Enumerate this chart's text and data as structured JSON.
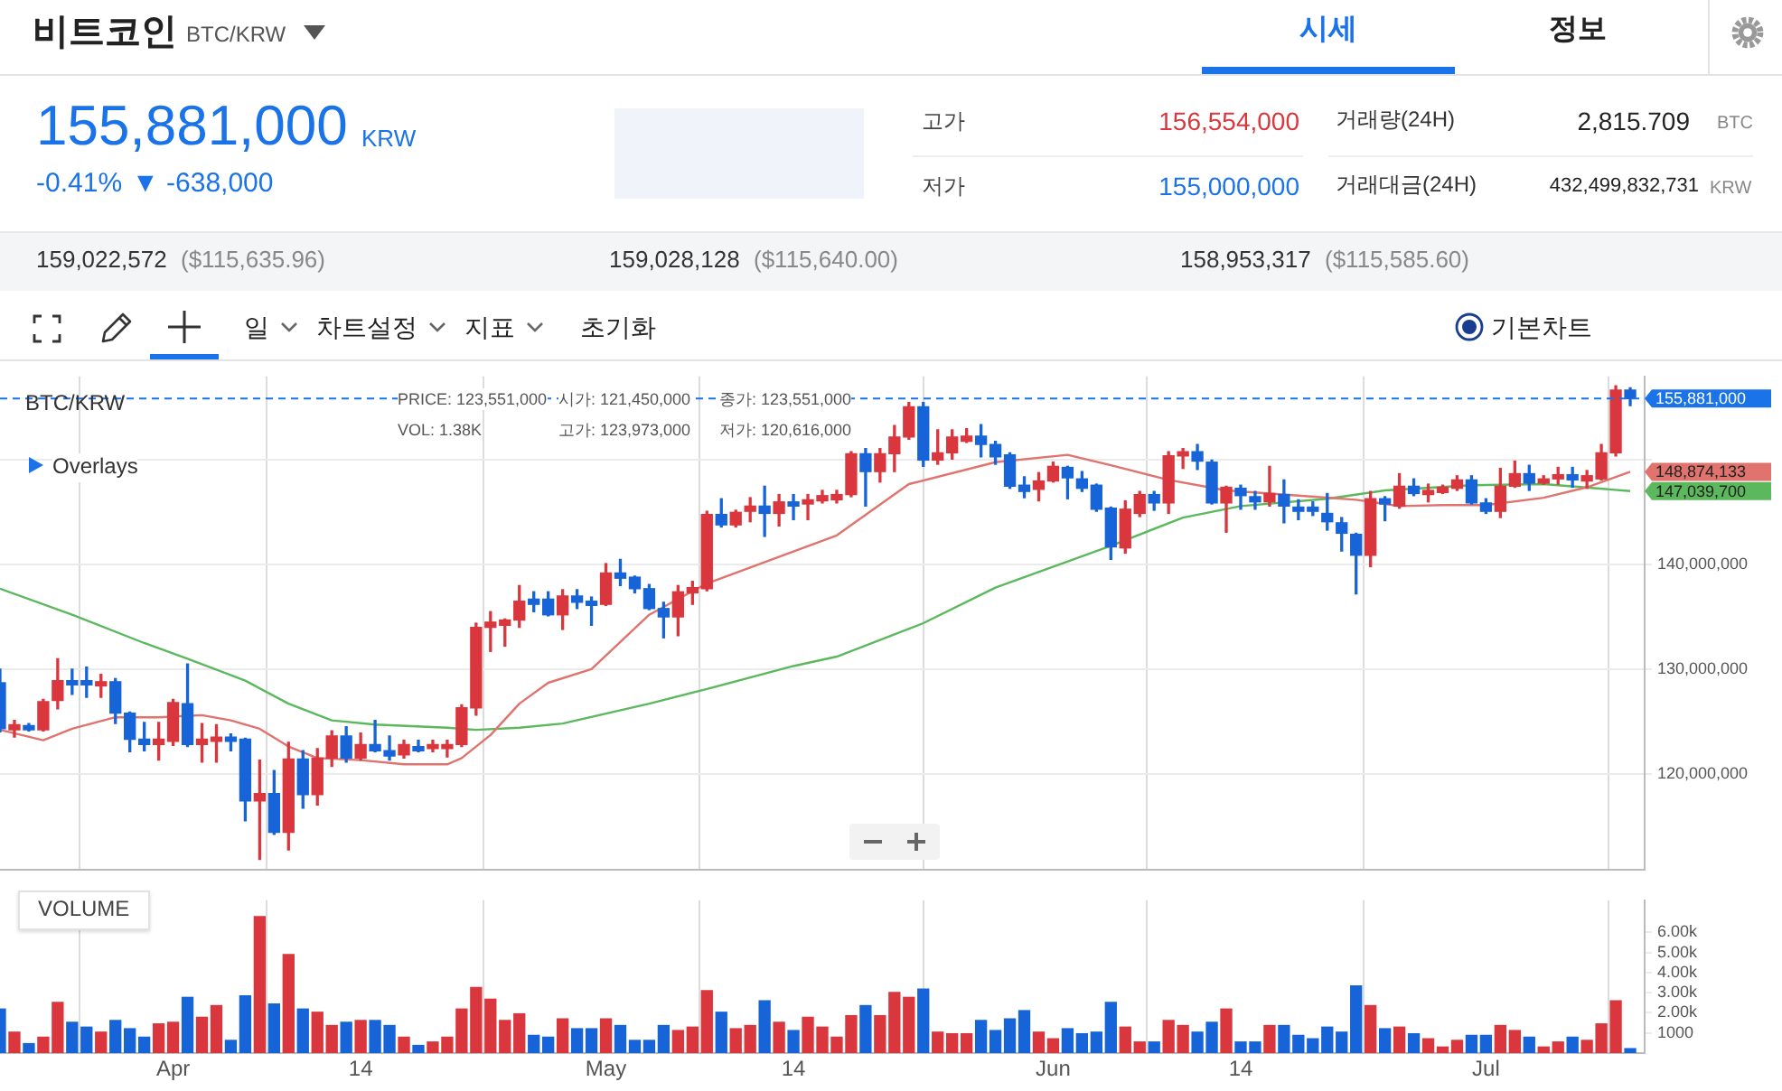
{
  "chart_data": [
    {
      "type": "other",
      "title": "비트코인",
      "subtitle": "BTC/KRW",
      "annotations": [
        "시세",
        "정보",
        "155,881,000",
        "KRW",
        "-0.41%",
        "▼ -638,000",
        "고가",
        "156,554,000",
        "저가",
        "155,000,000",
        "거래량(24H)",
        "2,815.709",
        "BTC",
        "거래대금(24H)",
        "432,499,832,731",
        "KRW",
        "159,022,572",
        "($115,635.96)",
        "159,028,128",
        "($115,640.00)",
        "158,953,317",
        "($115,585.60)",
        "일",
        "차트설정",
        "지표",
        "초기화",
        "기본차트"
      ]
    },
    {
      "type": "candlestick",
      "title": "BTC/KRW",
      "annotations": [
        "Overlays",
        "PRICE: 123,551,000",
        "VOL: 1.38K",
        "시가: 121,450,000",
        "고가: 123,973,000",
        "종가: 123,551,000",
        "저가: 120,616,000"
      ],
      "x": [
        "--03-20",
        "--03-21",
        "--03-22",
        "--03-23",
        "--03-24",
        "--03-25",
        "--03-26",
        "--03-27",
        "--03-28",
        "--03-29",
        "--03-30",
        "--03-31",
        "--04-01",
        "--04-02",
        "--04-03",
        "--04-04",
        "--04-05",
        "--04-06",
        "--04-07",
        "--04-08",
        "--04-09",
        "--04-10",
        "--04-11",
        "--04-12",
        "--04-13",
        "--04-14",
        "--04-15",
        "--04-16",
        "--04-17",
        "--04-18",
        "--04-19",
        "--04-20",
        "--04-21",
        "--04-22",
        "--04-23",
        "--04-24",
        "--04-25",
        "--04-26",
        "--04-27",
        "--04-28",
        "--04-29",
        "--04-30",
        "--05-01",
        "--05-02",
        "--05-03",
        "--05-04",
        "--05-05",
        "--05-06",
        "--05-07",
        "--05-08",
        "--05-09",
        "--05-10",
        "--05-11",
        "--05-12",
        "--05-13",
        "--05-14",
        "--05-15",
        "--05-16",
        "--05-17",
        "--05-18",
        "--05-19",
        "--05-20",
        "--05-21",
        "--05-22",
        "--05-23",
        "--05-24",
        "--05-25",
        "--05-26",
        "--05-27",
        "--05-28",
        "--05-29",
        "--05-30",
        "--05-31",
        "--06-01",
        "--06-02",
        "--06-03",
        "--06-04",
        "--06-05",
        "--06-06",
        "--06-07",
        "--06-08",
        "--06-09",
        "--06-10",
        "--06-11",
        "--06-12",
        "--06-13",
        "--06-14",
        "--06-15",
        "--06-16",
        "--06-17",
        "--06-18",
        "--06-19",
        "--06-20",
        "--06-21",
        "--06-22",
        "--06-23",
        "--06-24",
        "--06-25",
        "--06-26",
        "--06-27",
        "--06-28",
        "--06-29",
        "--06-30",
        "--07-01",
        "--07-02",
        "--07-03",
        "--07-04",
        "--07-05",
        "--07-06",
        "--07-07",
        "--07-08",
        "--07-09",
        "--07-10",
        "--07-11"
      ],
      "ohlc": [
        [
          128700000,
          130000000,
          124000000,
          124300000
        ],
        [
          124200000,
          125100000,
          123500000,
          124700000
        ],
        [
          124600000,
          124800000,
          124100000,
          124200000
        ],
        [
          124200000,
          127100000,
          124100000,
          126900000
        ],
        [
          127000000,
          131000000,
          126200000,
          128900000
        ],
        [
          128900000,
          130000000,
          127600000,
          128500000
        ],
        [
          128900000,
          130200000,
          127300000,
          128500000
        ],
        [
          128400000,
          129500000,
          127300000,
          128800000
        ],
        [
          128800000,
          129100000,
          124800000,
          125800000
        ],
        [
          125800000,
          125900000,
          122100000,
          123300000
        ],
        [
          123300000,
          124900000,
          122200000,
          122800000
        ],
        [
          122800000,
          124900000,
          121300000,
          123300000
        ],
        [
          123100000,
          127100000,
          122700000,
          126800000
        ],
        [
          126700000,
          130500000,
          122600000,
          122800000
        ],
        [
          122800000,
          124800000,
          121100000,
          123300000
        ],
        [
          123100000,
          124700000,
          121100000,
          123500000
        ],
        [
          123500000,
          123800000,
          122200000,
          123100000
        ],
        [
          123300000,
          123400000,
          115500000,
          117400000
        ],
        [
          117400000,
          121300000,
          111800000,
          118100000
        ],
        [
          118100000,
          120300000,
          114200000,
          114400000
        ],
        [
          114400000,
          123000000,
          112700000,
          121400000
        ],
        [
          121400000,
          122200000,
          116700000,
          118000000
        ],
        [
          118000000,
          122400000,
          117000000,
          121500000
        ],
        [
          121500000,
          124100000,
          120700000,
          123600000
        ],
        [
          123600000,
          124500000,
          121100000,
          121500000
        ],
        [
          121500000,
          123900000,
          121300000,
          122800000
        ],
        [
          122800000,
          125100000,
          122100000,
          122200000
        ],
        [
          122200000,
          123600000,
          121300000,
          121700000
        ],
        [
          121800000,
          123200000,
          121500000,
          122800000
        ],
        [
          122600000,
          123200000,
          122100000,
          122200000
        ],
        [
          122400000,
          123200000,
          122100000,
          122800000
        ],
        [
          122400000,
          123200000,
          121600000,
          122800000
        ],
        [
          122800000,
          126600000,
          122600000,
          126300000
        ],
        [
          126300000,
          134400000,
          125600000,
          134000000
        ],
        [
          134000000,
          135500000,
          131700000,
          134500000
        ],
        [
          134200000,
          134800000,
          132200000,
          134700000
        ],
        [
          134700000,
          138000000,
          134000000,
          136500000
        ],
        [
          136700000,
          137400000,
          135500000,
          136200000
        ],
        [
          136700000,
          137400000,
          135100000,
          135200000
        ],
        [
          135200000,
          137600000,
          133800000,
          137000000
        ],
        [
          137000000,
          137600000,
          135800000,
          136400000
        ],
        [
          136500000,
          136900000,
          134200000,
          136100000
        ],
        [
          136200000,
          140100000,
          136100000,
          139200000
        ],
        [
          139200000,
          140500000,
          138000000,
          138700000
        ],
        [
          138800000,
          138900000,
          137300000,
          137700000
        ],
        [
          137700000,
          138100000,
          135700000,
          135800000
        ],
        [
          135800000,
          136400000,
          133000000,
          135000000
        ],
        [
          135000000,
          138000000,
          133200000,
          137400000
        ],
        [
          137300000,
          138400000,
          136200000,
          137800000
        ],
        [
          137700000,
          145100000,
          137500000,
          144800000
        ],
        [
          144800000,
          146300000,
          143600000,
          143800000
        ],
        [
          143800000,
          145200000,
          143600000,
          145000000
        ],
        [
          145100000,
          146400000,
          144100000,
          145600000
        ],
        [
          145600000,
          147500000,
          142700000,
          144900000
        ],
        [
          144900000,
          146700000,
          143700000,
          146000000
        ],
        [
          146000000,
          146700000,
          144300000,
          145600000
        ],
        [
          145800000,
          146700000,
          144300000,
          146200000
        ],
        [
          146100000,
          147100000,
          145900000,
          146600000
        ],
        [
          146200000,
          147100000,
          145900000,
          146700000
        ],
        [
          146700000,
          150800000,
          146500000,
          150600000
        ],
        [
          150600000,
          151100000,
          145600000,
          148900000
        ],
        [
          148900000,
          151100000,
          147900000,
          150600000
        ],
        [
          150600000,
          153300000,
          148900000,
          152200000
        ],
        [
          152200000,
          155500000,
          152000000,
          155100000
        ],
        [
          155100000,
          155500000,
          149400000,
          150000000
        ],
        [
          150000000,
          152900000,
          149600000,
          150700000
        ],
        [
          150700000,
          152900000,
          150100000,
          152200000
        ],
        [
          151800000,
          153000000,
          151700000,
          152300000
        ],
        [
          152300000,
          153400000,
          150300000,
          151500000
        ],
        [
          151500000,
          151800000,
          149600000,
          150300000
        ],
        [
          150500000,
          150700000,
          147300000,
          147500000
        ],
        [
          147600000,
          148400000,
          146400000,
          147000000
        ],
        [
          147200000,
          148800000,
          146100000,
          148000000
        ],
        [
          148000000,
          149800000,
          147900000,
          149400000
        ],
        [
          149300000,
          149400000,
          146300000,
          148300000
        ],
        [
          148200000,
          148900000,
          147000000,
          147300000
        ],
        [
          147600000,
          147700000,
          145100000,
          145300000
        ],
        [
          145400000,
          145500000,
          140500000,
          141700000
        ],
        [
          141600000,
          146100000,
          141100000,
          145300000
        ],
        [
          144900000,
          147000000,
          144600000,
          146700000
        ],
        [
          146700000,
          147000000,
          145200000,
          145900000
        ],
        [
          145900000,
          150800000,
          144900000,
          150400000
        ],
        [
          150400000,
          151100000,
          149200000,
          150800000
        ],
        [
          150800000,
          151500000,
          149100000,
          149900000
        ],
        [
          149800000,
          150000000,
          145800000,
          145900000
        ],
        [
          145900000,
          147500000,
          143100000,
          147400000
        ],
        [
          147300000,
          147600000,
          145300000,
          146600000
        ],
        [
          146500000,
          147000000,
          145300000,
          146000000
        ],
        [
          146000000,
          149400000,
          145600000,
          146800000
        ],
        [
          146700000,
          148100000,
          144000000,
          145600000
        ],
        [
          145500000,
          146200000,
          144300000,
          145100000
        ],
        [
          145500000,
          146000000,
          144700000,
          145100000
        ],
        [
          144900000,
          146800000,
          143300000,
          144100000
        ],
        [
          144000000,
          144500000,
          141300000,
          143000000
        ],
        [
          142900000,
          143000000,
          137200000,
          140900000
        ],
        [
          140900000,
          147000000,
          139800000,
          146300000
        ],
        [
          146300000,
          146500000,
          144200000,
          145800000
        ],
        [
          145600000,
          148700000,
          145400000,
          147500000
        ],
        [
          147500000,
          148200000,
          146600000,
          146800000
        ],
        [
          146700000,
          147700000,
          146000000,
          147100000
        ],
        [
          146900000,
          147600000,
          146800000,
          147400000
        ],
        [
          147300000,
          148500000,
          147100000,
          148100000
        ],
        [
          148100000,
          148500000,
          145800000,
          145900000
        ],
        [
          145900000,
          146300000,
          144900000,
          145100000
        ],
        [
          145100000,
          149200000,
          144500000,
          147500000
        ],
        [
          147500000,
          149900000,
          147400000,
          148700000
        ],
        [
          148700000,
          149500000,
          147100000,
          147800000
        ],
        [
          147800000,
          148500000,
          147700000,
          148200000
        ],
        [
          148200000,
          149300000,
          147700000,
          148600000
        ],
        [
          148600000,
          149300000,
          147400000,
          148100000
        ],
        [
          148000000,
          149000000,
          147300000,
          148500000
        ],
        [
          148200000,
          151500000,
          148100000,
          150700000
        ],
        [
          150700000,
          157100000,
          150400000,
          156700000
        ],
        [
          156700000,
          156900000,
          155200000,
          155881000
        ]
      ],
      "colors": [
        "#1764d8",
        "#d9363e",
        "#1764d8",
        "#d9363e",
        "#d9363e",
        "#1764d8",
        "#1764d8",
        "#d9363e",
        "#1764d8",
        "#1764d8",
        "#1764d8",
        "#d9363e",
        "#d9363e",
        "#1764d8",
        "#d9363e",
        "#d9363e",
        "#1764d8",
        "#1764d8",
        "#d9363e",
        "#1764d8",
        "#d9363e",
        "#1764d8",
        "#d9363e",
        "#d9363e",
        "#1764d8",
        "#d9363e",
        "#1764d8",
        "#1764d8",
        "#d9363e",
        "#1764d8",
        "#d9363e",
        "#d9363e",
        "#d9363e",
        "#d9363e",
        "#d9363e",
        "#d9363e",
        "#d9363e",
        "#1764d8",
        "#1764d8",
        "#d9363e",
        "#1764d8",
        "#1764d8",
        "#d9363e",
        "#1764d8",
        "#1764d8",
        "#1764d8",
        "#1764d8",
        "#d9363e",
        "#d9363e",
        "#d9363e",
        "#1764d8",
        "#d9363e",
        "#d9363e",
        "#1764d8",
        "#d9363e",
        "#1764d8",
        "#d9363e",
        "#d9363e",
        "#d9363e",
        "#d9363e",
        "#1764d8",
        "#d9363e",
        "#d9363e",
        "#d9363e",
        "#1764d8",
        "#d9363e",
        "#d9363e",
        "#d9363e",
        "#1764d8",
        "#1764d8",
        "#1764d8",
        "#1764d8",
        "#d9363e",
        "#d9363e",
        "#1764d8",
        "#1764d8",
        "#1764d8",
        "#1764d8",
        "#d9363e",
        "#d9363e",
        "#1764d8",
        "#d9363e",
        "#d9363e",
        "#1764d8",
        "#1764d8",
        "#d9363e",
        "#1764d8",
        "#1764d8",
        "#d9363e",
        "#1764d8",
        "#1764d8",
        "#1764d8",
        "#1764d8",
        "#1764d8",
        "#1764d8",
        "#d9363e",
        "#1764d8",
        "#d9363e",
        "#1764d8",
        "#d9363e",
        "#d9363e",
        "#d9363e",
        "#1764d8",
        "#1764d8",
        "#d9363e",
        "#d9363e",
        "#1764d8",
        "#d9363e",
        "#d9363e",
        "#1764d8",
        "#d9363e",
        "#d9363e",
        "#d9363e",
        "#1764d8"
      ],
      "series": [
        {
          "type": "line",
          "color": "#e0736e",
          "x": [
            "--03-20",
            "--03-23",
            "--03-25",
            "--03-28",
            "--03-31",
            "--04-03",
            "--04-05",
            "--04-07",
            "--04-09",
            "--04-11",
            "--04-14",
            "--04-17",
            "--04-20",
            "--04-21",
            "--04-23",
            "--04-25",
            "--04-27",
            "--04-30",
            "--05-04",
            "--05-08",
            "--05-17",
            "--05-22",
            "--05-28",
            "--06-02",
            "--06-05",
            "--06-09",
            "--06-13",
            "--06-18",
            "--06-22",
            "--06-25",
            "--06-28",
            "--07-01",
            "--07-05",
            "--07-08",
            "--07-11"
          ],
          "values": [
            124200000,
            123200000,
            124300000,
            125400000,
            125400000,
            125600000,
            125100000,
            124300000,
            122600000,
            121500000,
            121300000,
            120900000,
            120900000,
            121500000,
            123700000,
            126700000,
            128700000,
            130000000,
            135200000,
            138200000,
            142800000,
            147700000,
            149800000,
            150500000,
            149500000,
            148100000,
            147100000,
            146600000,
            146200000,
            145600000,
            145700000,
            145700000,
            146400000,
            147400000,
            148874133
          ],
          "value_labels": [
            null,
            null,
            null,
            null,
            null,
            null,
            null,
            null,
            null,
            null,
            null,
            null,
            null,
            null,
            null,
            null,
            null,
            null,
            null,
            null,
            null,
            null,
            null,
            null,
            null,
            null,
            null,
            null,
            null,
            null,
            null,
            null,
            null,
            null,
            "148,874,133"
          ]
        },
        {
          "type": "line",
          "color": "#5cb85c",
          "x": [
            "--03-20",
            "--03-25",
            "--03-30",
            "--04-02",
            "--04-06",
            "--04-09",
            "--04-12",
            "--04-15",
            "--04-20",
            "--04-22",
            "--04-25",
            "--04-28",
            "--05-04",
            "--05-08",
            "--05-14",
            "--05-17",
            "--05-23",
            "--05-28",
            "--06-05",
            "--06-10",
            "--06-14",
            "--06-20",
            "--06-24",
            "--06-30",
            "--07-05",
            "--07-11"
          ],
          "values": [
            137700000,
            135200000,
            132500000,
            131000000,
            128900000,
            126700000,
            125100000,
            124700000,
            124400000,
            124200000,
            124400000,
            124800000,
            126700000,
            128100000,
            130300000,
            131200000,
            134400000,
            137800000,
            141800000,
            144500000,
            145600000,
            146300000,
            147100000,
            147600000,
            147700000,
            147039700
          ],
          "value_labels": [
            null,
            null,
            null,
            null,
            null,
            null,
            null,
            null,
            null,
            null,
            null,
            null,
            null,
            null,
            null,
            null,
            null,
            null,
            null,
            null,
            null,
            null,
            null,
            null,
            null,
            "147,039,700"
          ]
        }
      ],
      "xlim": [
        "--03-20",
        "--07-12"
      ],
      "xticks": [
        {
          "value": "--04-01",
          "label": null
        },
        {
          "value": "--04-14",
          "label": null
        },
        {
          "value": "--05-01",
          "label": null
        },
        {
          "value": "--05-14",
          "label": null
        },
        {
          "value": "--06-01",
          "label": null
        },
        {
          "value": "--06-14",
          "label": null
        },
        {
          "value": "--07-01",
          "label": null
        }
      ],
      "ylim": [
        110800000,
        158000000
      ],
      "yticks": [
        {
          "value": 120000000,
          "label": "120,000,000"
        },
        {
          "value": 130000000,
          "label": "130,000,000"
        },
        {
          "value": 140000000,
          "label": "140,000,000"
        },
        {
          "value": 150000000,
          "label": null
        }
      ],
      "grid": true,
      "tick_labels": "y",
      "ref_lines": [
        {
          "axis": "y",
          "value": 155881000,
          "label": "155,881,000",
          "color": "#1a73e8",
          "line_style": "dashed"
        }
      ]
    },
    {
      "type": "bar",
      "title": "VOLUME",
      "x": [
        "--03-20",
        "--03-21",
        "--03-22",
        "--03-23",
        "--03-24",
        "--03-25",
        "--03-26",
        "--03-27",
        "--03-28",
        "--03-29",
        "--03-30",
        "--03-31",
        "--04-01",
        "--04-02",
        "--04-03",
        "--04-04",
        "--04-05",
        "--04-06",
        "--04-07",
        "--04-08",
        "--04-09",
        "--04-10",
        "--04-11",
        "--04-12",
        "--04-13",
        "--04-14",
        "--04-15",
        "--04-16",
        "--04-17",
        "--04-18",
        "--04-19",
        "--04-20",
        "--04-21",
        "--04-22",
        "--04-23",
        "--04-24",
        "--04-25",
        "--04-26",
        "--04-27",
        "--04-28",
        "--04-29",
        "--04-30",
        "--05-01",
        "--05-02",
        "--05-03",
        "--05-04",
        "--05-05",
        "--05-06",
        "--05-07",
        "--05-08",
        "--05-09",
        "--05-10",
        "--05-11",
        "--05-12",
        "--05-13",
        "--05-14",
        "--05-15",
        "--05-16",
        "--05-17",
        "--05-18",
        "--05-19",
        "--05-20",
        "--05-21",
        "--05-22",
        "--05-23",
        "--05-24",
        "--05-25",
        "--05-26",
        "--05-27",
        "--05-28",
        "--05-29",
        "--05-30",
        "--05-31",
        "--06-01",
        "--06-02",
        "--06-03",
        "--06-04",
        "--06-05",
        "--06-06",
        "--06-07",
        "--06-08",
        "--06-09",
        "--06-10",
        "--06-11",
        "--06-12",
        "--06-13",
        "--06-14",
        "--06-15",
        "--06-16",
        "--06-17",
        "--06-18",
        "--06-19",
        "--06-20",
        "--06-21",
        "--06-22",
        "--06-23",
        "--06-24",
        "--06-25",
        "--06-26",
        "--06-27",
        "--06-28",
        "--06-29",
        "--06-30",
        "--07-01",
        "--07-02",
        "--07-03",
        "--07-04",
        "--07-05",
        "--07-06",
        "--07-07",
        "--07-08",
        "--07-09",
        "--07-10",
        "--07-11"
      ],
      "values": [
        2190,
        1040,
        470,
        790,
        2520,
        1530,
        1290,
        1040,
        1620,
        1210,
        790,
        1450,
        1530,
        2770,
        1780,
        2360,
        630,
        2850,
        6790,
        2440,
        4900,
        2190,
        2030,
        1370,
        1530,
        1620,
        1620,
        1370,
        790,
        380,
        550,
        790,
        2190,
        3260,
        2680,
        1620,
        1950,
        880,
        790,
        1700,
        1210,
        1210,
        1700,
        1370,
        630,
        630,
        1370,
        1120,
        1290,
        3100,
        2030,
        1210,
        1370,
        2600,
        1530,
        1120,
        1780,
        1290,
        790,
        1860,
        2360,
        1860,
        3010,
        2770,
        3180,
        1040,
        960,
        960,
        1620,
        1120,
        1700,
        2110,
        1040,
        710,
        1210,
        960,
        1040,
        2520,
        1290,
        550,
        550,
        1620,
        1370,
        1040,
        1530,
        2190,
        550,
        550,
        1370,
        1370,
        880,
        710,
        1290,
        1040,
        3340,
        2360,
        1210,
        1290,
        960,
        710,
        300,
        630,
        880,
        880,
        1370,
        1120,
        790,
        300,
        550,
        790,
        630,
        1450,
        2600,
        220
      ],
      "colors": [
        "#1764d8",
        "#d9363e",
        "#1764d8",
        "#d9363e",
        "#d9363e",
        "#1764d8",
        "#1764d8",
        "#d9363e",
        "#1764d8",
        "#1764d8",
        "#1764d8",
        "#d9363e",
        "#d9363e",
        "#1764d8",
        "#d9363e",
        "#d9363e",
        "#1764d8",
        "#1764d8",
        "#d9363e",
        "#1764d8",
        "#d9363e",
        "#1764d8",
        "#d9363e",
        "#d9363e",
        "#1764d8",
        "#d9363e",
        "#1764d8",
        "#1764d8",
        "#d9363e",
        "#1764d8",
        "#d9363e",
        "#d9363e",
        "#d9363e",
        "#d9363e",
        "#d9363e",
        "#d9363e",
        "#d9363e",
        "#1764d8",
        "#1764d8",
        "#d9363e",
        "#1764d8",
        "#1764d8",
        "#d9363e",
        "#1764d8",
        "#1764d8",
        "#1764d8",
        "#1764d8",
        "#d9363e",
        "#d9363e",
        "#d9363e",
        "#1764d8",
        "#d9363e",
        "#d9363e",
        "#1764d8",
        "#d9363e",
        "#1764d8",
        "#d9363e",
        "#d9363e",
        "#d9363e",
        "#d9363e",
        "#1764d8",
        "#d9363e",
        "#d9363e",
        "#d9363e",
        "#1764d8",
        "#d9363e",
        "#d9363e",
        "#d9363e",
        "#1764d8",
        "#1764d8",
        "#1764d8",
        "#1764d8",
        "#d9363e",
        "#d9363e",
        "#1764d8",
        "#1764d8",
        "#1764d8",
        "#1764d8",
        "#d9363e",
        "#d9363e",
        "#1764d8",
        "#d9363e",
        "#d9363e",
        "#1764d8",
        "#1764d8",
        "#d9363e",
        "#1764d8",
        "#1764d8",
        "#d9363e",
        "#1764d8",
        "#1764d8",
        "#1764d8",
        "#1764d8",
        "#1764d8",
        "#1764d8",
        "#d9363e",
        "#1764d8",
        "#d9363e",
        "#1764d8",
        "#d9363e",
        "#d9363e",
        "#d9363e",
        "#1764d8",
        "#1764d8",
        "#d9363e",
        "#d9363e",
        "#1764d8",
        "#d9363e",
        "#d9363e",
        "#1764d8",
        "#d9363e",
        "#d9363e",
        "#d9363e",
        "#1764d8"
      ],
      "xlim": [
        "--03-20",
        "--07-12"
      ],
      "xticks": [
        {
          "value": "--04-01",
          "label": "Apr"
        },
        {
          "value": "--04-14",
          "label": "14"
        },
        {
          "value": "--05-01",
          "label": "May"
        },
        {
          "value": "--05-14",
          "label": "14"
        },
        {
          "value": "--06-01",
          "label": "Jun"
        },
        {
          "value": "--06-14",
          "label": "14"
        },
        {
          "value": "--07-01",
          "label": "Jul"
        }
      ],
      "ylim": [
        0,
        7600
      ],
      "yticks": [
        {
          "value": 1000,
          "label": "1000"
        },
        {
          "value": 2000,
          "label": "2.00k"
        },
        {
          "value": 3000,
          "label": "3.00k"
        },
        {
          "value": 4000,
          "label": "4.00k"
        },
        {
          "value": 5000,
          "label": "5.00k"
        },
        {
          "value": 6000,
          "label": "6.00k"
        }
      ],
      "grid": "x"
    }
  ]
}
